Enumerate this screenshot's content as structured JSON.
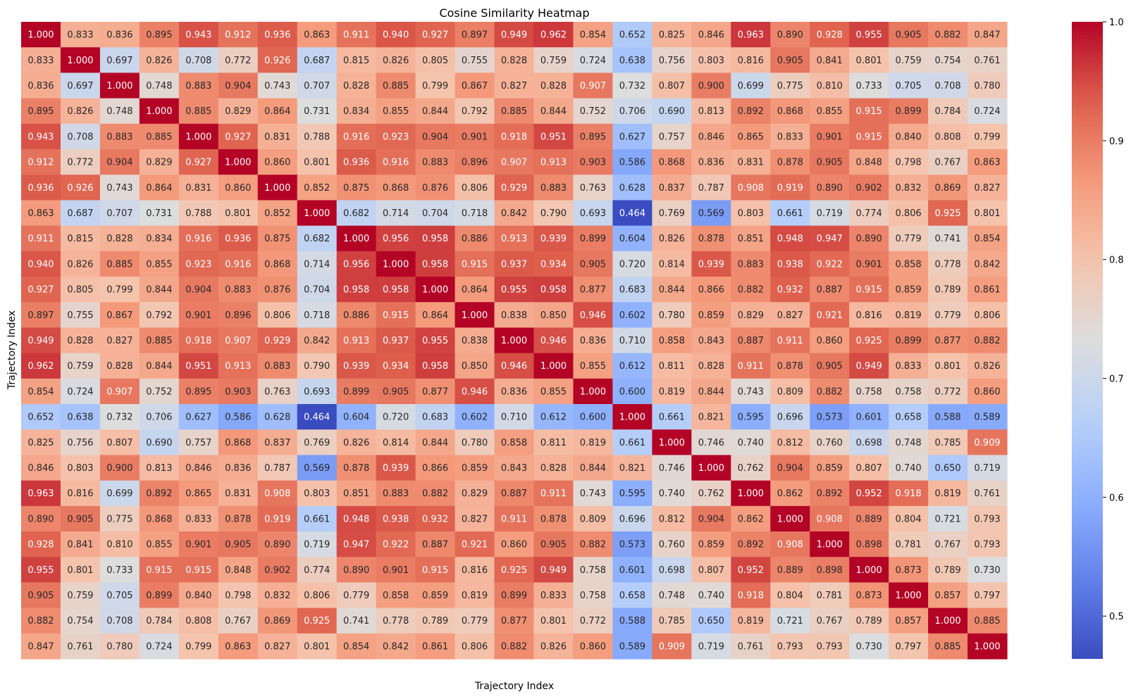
{
  "chart_data": {
    "type": "heatmap",
    "title": "Cosine Similarity Heatmap",
    "xlabel": "Trajectory Index",
    "ylabel": "Trajectory Index",
    "colormap": "coolwarm",
    "vmin": 0.464,
    "vmax": 1.0,
    "colorbar_ticks": [
      "0.5",
      "0.6",
      "0.7",
      "0.8",
      "0.9",
      "1.0"
    ],
    "colorbar_tick_values": [
      0.5,
      0.6,
      0.7,
      0.8,
      0.9,
      1.0
    ],
    "x_tick_labels_shown": false,
    "y_tick_labels_shown": false,
    "value_format": "3 decimals",
    "matrix": [
      [
        1.0,
        0.833,
        0.836,
        0.895,
        0.943,
        0.912,
        0.936,
        0.863,
        0.911,
        0.94,
        0.927,
        0.897,
        0.949,
        0.962,
        0.854,
        0.652,
        0.825,
        0.846,
        0.963,
        0.89,
        0.928,
        0.955,
        0.905,
        0.882,
        0.847
      ],
      [
        0.833,
        1.0,
        0.697,
        0.826,
        0.708,
        0.772,
        0.926,
        0.687,
        0.815,
        0.826,
        0.805,
        0.755,
        0.828,
        0.759,
        0.724,
        0.638,
        0.756,
        0.803,
        0.816,
        0.905,
        0.841,
        0.801,
        0.759,
        0.754,
        0.761
      ],
      [
        0.836,
        0.697,
        1.0,
        0.748,
        0.883,
        0.904,
        0.743,
        0.707,
        0.828,
        0.885,
        0.799,
        0.867,
        0.827,
        0.828,
        0.907,
        0.732,
        0.807,
        0.9,
        0.699,
        0.775,
        0.81,
        0.733,
        0.705,
        0.708,
        0.78
      ],
      [
        0.895,
        0.826,
        0.748,
        1.0,
        0.885,
        0.829,
        0.864,
        0.731,
        0.834,
        0.855,
        0.844,
        0.792,
        0.885,
        0.844,
        0.752,
        0.706,
        0.69,
        0.813,
        0.892,
        0.868,
        0.855,
        0.915,
        0.899,
        0.784,
        0.724
      ],
      [
        0.943,
        0.708,
        0.883,
        0.885,
        1.0,
        0.927,
        0.831,
        0.788,
        0.916,
        0.923,
        0.904,
        0.901,
        0.918,
        0.951,
        0.895,
        0.627,
        0.757,
        0.846,
        0.865,
        0.833,
        0.901,
        0.915,
        0.84,
        0.808,
        0.799
      ],
      [
        0.912,
        0.772,
        0.904,
        0.829,
        0.927,
        1.0,
        0.86,
        0.801,
        0.936,
        0.916,
        0.883,
        0.896,
        0.907,
        0.913,
        0.903,
        0.586,
        0.868,
        0.836,
        0.831,
        0.878,
        0.905,
        0.848,
        0.798,
        0.767,
        0.863
      ],
      [
        0.936,
        0.926,
        0.743,
        0.864,
        0.831,
        0.86,
        1.0,
        0.852,
        0.875,
        0.868,
        0.876,
        0.806,
        0.929,
        0.883,
        0.763,
        0.628,
        0.837,
        0.787,
        0.908,
        0.919,
        0.89,
        0.902,
        0.832,
        0.869,
        0.827
      ],
      [
        0.863,
        0.687,
        0.707,
        0.731,
        0.788,
        0.801,
        0.852,
        1.0,
        0.682,
        0.714,
        0.704,
        0.718,
        0.842,
        0.79,
        0.693,
        0.464,
        0.769,
        0.569,
        0.803,
        0.661,
        0.719,
        0.774,
        0.806,
        0.925,
        0.801
      ],
      [
        0.911,
        0.815,
        0.828,
        0.834,
        0.916,
        0.936,
        0.875,
        0.682,
        1.0,
        0.956,
        0.958,
        0.886,
        0.913,
        0.939,
        0.899,
        0.604,
        0.826,
        0.878,
        0.851,
        0.948,
        0.947,
        0.89,
        0.779,
        0.741,
        0.854
      ],
      [
        0.94,
        0.826,
        0.885,
        0.855,
        0.923,
        0.916,
        0.868,
        0.714,
        0.956,
        1.0,
        0.958,
        0.915,
        0.937,
        0.934,
        0.905,
        0.72,
        0.814,
        0.939,
        0.883,
        0.938,
        0.922,
        0.901,
        0.858,
        0.778,
        0.842
      ],
      [
        0.927,
        0.805,
        0.799,
        0.844,
        0.904,
        0.883,
        0.876,
        0.704,
        0.958,
        0.958,
        1.0,
        0.864,
        0.955,
        0.958,
        0.877,
        0.683,
        0.844,
        0.866,
        0.882,
        0.932,
        0.887,
        0.915,
        0.859,
        0.789,
        0.861
      ],
      [
        0.897,
        0.755,
        0.867,
        0.792,
        0.901,
        0.896,
        0.806,
        0.718,
        0.886,
        0.915,
        0.864,
        1.0,
        0.838,
        0.85,
        0.946,
        0.602,
        0.78,
        0.859,
        0.829,
        0.827,
        0.921,
        0.816,
        0.819,
        0.779,
        0.806
      ],
      [
        0.949,
        0.828,
        0.827,
        0.885,
        0.918,
        0.907,
        0.929,
        0.842,
        0.913,
        0.937,
        0.955,
        0.838,
        1.0,
        0.946,
        0.836,
        0.71,
        0.858,
        0.843,
        0.887,
        0.911,
        0.86,
        0.925,
        0.899,
        0.877,
        0.882
      ],
      [
        0.962,
        0.759,
        0.828,
        0.844,
        0.951,
        0.913,
        0.883,
        0.79,
        0.939,
        0.934,
        0.958,
        0.85,
        0.946,
        1.0,
        0.855,
        0.612,
        0.811,
        0.828,
        0.911,
        0.878,
        0.905,
        0.949,
        0.833,
        0.801,
        0.826
      ],
      [
        0.854,
        0.724,
        0.907,
        0.752,
        0.895,
        0.903,
        0.763,
        0.693,
        0.899,
        0.905,
        0.877,
        0.946,
        0.836,
        0.855,
        1.0,
        0.6,
        0.819,
        0.844,
        0.743,
        0.809,
        0.882,
        0.758,
        0.758,
        0.772,
        0.86
      ],
      [
        0.652,
        0.638,
        0.732,
        0.706,
        0.627,
        0.586,
        0.628,
        0.464,
        0.604,
        0.72,
        0.683,
        0.602,
        0.71,
        0.612,
        0.6,
        1.0,
        0.661,
        0.821,
        0.595,
        0.696,
        0.573,
        0.601,
        0.658,
        0.588,
        0.589
      ],
      [
        0.825,
        0.756,
        0.807,
        0.69,
        0.757,
        0.868,
        0.837,
        0.769,
        0.826,
        0.814,
        0.844,
        0.78,
        0.858,
        0.811,
        0.819,
        0.661,
        1.0,
        0.746,
        0.74,
        0.812,
        0.76,
        0.698,
        0.748,
        0.785,
        0.909
      ],
      [
        0.846,
        0.803,
        0.9,
        0.813,
        0.846,
        0.836,
        0.787,
        0.569,
        0.878,
        0.939,
        0.866,
        0.859,
        0.843,
        0.828,
        0.844,
        0.821,
        0.746,
        1.0,
        0.762,
        0.904,
        0.859,
        0.807,
        0.74,
        0.65,
        0.719
      ],
      [
        0.963,
        0.816,
        0.699,
        0.892,
        0.865,
        0.831,
        0.908,
        0.803,
        0.851,
        0.883,
        0.882,
        0.829,
        0.887,
        0.911,
        0.743,
        0.595,
        0.74,
        0.762,
        1.0,
        0.862,
        0.892,
        0.952,
        0.918,
        0.819,
        0.761
      ],
      [
        0.89,
        0.905,
        0.775,
        0.868,
        0.833,
        0.878,
        0.919,
        0.661,
        0.948,
        0.938,
        0.932,
        0.827,
        0.911,
        0.878,
        0.809,
        0.696,
        0.812,
        0.904,
        0.862,
        1.0,
        0.908,
        0.889,
        0.804,
        0.721,
        0.793
      ],
      [
        0.928,
        0.841,
        0.81,
        0.855,
        0.901,
        0.905,
        0.89,
        0.719,
        0.947,
        0.922,
        0.887,
        0.921,
        0.86,
        0.905,
        0.882,
        0.573,
        0.76,
        0.859,
        0.892,
        0.908,
        1.0,
        0.898,
        0.781,
        0.767,
        0.793
      ],
      [
        0.955,
        0.801,
        0.733,
        0.915,
        0.915,
        0.848,
        0.902,
        0.774,
        0.89,
        0.901,
        0.915,
        0.816,
        0.925,
        0.949,
        0.758,
        0.601,
        0.698,
        0.807,
        0.952,
        0.889,
        0.898,
        1.0,
        0.873,
        0.789,
        0.73
      ],
      [
        0.905,
        0.759,
        0.705,
        0.899,
        0.84,
        0.798,
        0.832,
        0.806,
        0.779,
        0.858,
        0.859,
        0.819,
        0.899,
        0.833,
        0.758,
        0.658,
        0.748,
        0.74,
        0.918,
        0.804,
        0.781,
        0.873,
        1.0,
        0.857,
        0.797
      ],
      [
        0.882,
        0.754,
        0.708,
        0.784,
        0.808,
        0.767,
        0.869,
        0.925,
        0.741,
        0.778,
        0.789,
        0.779,
        0.877,
        0.801,
        0.772,
        0.588,
        0.785,
        0.65,
        0.819,
        0.721,
        0.767,
        0.789,
        0.857,
        1.0,
        0.885
      ],
      [
        0.847,
        0.761,
        0.78,
        0.724,
        0.799,
        0.863,
        0.827,
        0.801,
        0.854,
        0.842,
        0.861,
        0.806,
        0.882,
        0.826,
        0.86,
        0.589,
        0.909,
        0.719,
        0.761,
        0.793,
        0.793,
        0.73,
        0.797,
        0.885,
        1.0
      ]
    ]
  }
}
